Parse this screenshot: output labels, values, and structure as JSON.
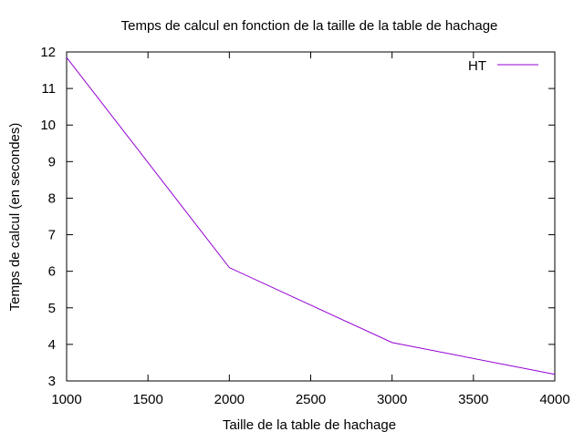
{
  "chart_data": {
    "type": "line",
    "title": "Temps de calcul en fonction de la taille de la table de hachage",
    "xlabel": "Taille de la table de hachage",
    "ylabel": "Temps de calcul (en secondes)",
    "xlim": [
      1000,
      4000
    ],
    "ylim": [
      3,
      12
    ],
    "xticks": [
      1000,
      1500,
      2000,
      2500,
      3000,
      3500,
      4000
    ],
    "yticks": [
      3,
      4,
      5,
      6,
      7,
      8,
      9,
      10,
      11,
      12
    ],
    "grid": false,
    "legend_position": "top-right",
    "series": [
      {
        "name": "HT",
        "color": "#9400d3",
        "x": [
          1000,
          2000,
          3000,
          4000
        ],
        "y": [
          11.85,
          6.1,
          4.05,
          3.18
        ]
      }
    ]
  }
}
